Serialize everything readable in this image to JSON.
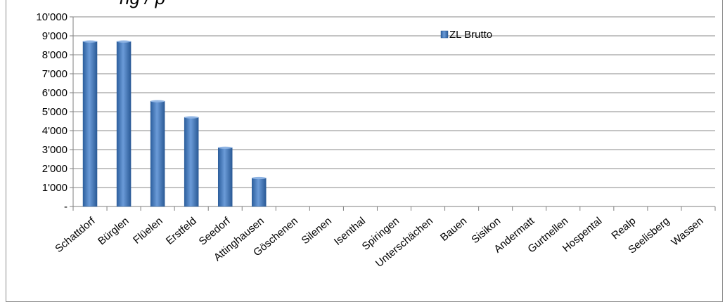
{
  "title_fragment": "ng / p",
  "chart_data": {
    "type": "bar",
    "categories": [
      "Schattdorf",
      "Bürglen",
      "Flüelen",
      "Erstfeld",
      "Seedorf",
      "Attinghausen",
      "Göschenen",
      "Silenen",
      "Isenthal",
      "Spiringen",
      "Unterschächen",
      "Bauen",
      "Sisikon",
      "Andermatt",
      "Gurtnellen",
      "Hospental",
      "Realp",
      "Seelisberg",
      "Wassen"
    ],
    "series": [
      {
        "name": "ZL Brutto",
        "values": [
          8700,
          8700,
          5550,
          4700,
          3100,
          1500,
          0,
          0,
          0,
          0,
          0,
          0,
          0,
          0,
          0,
          0,
          0,
          0,
          0
        ]
      }
    ],
    "ylim": [
      0,
      10000
    ],
    "yticks": [
      0,
      1000,
      2000,
      3000,
      4000,
      5000,
      6000,
      7000,
      8000,
      9000,
      10000
    ],
    "ytick_labels": [
      "-",
      "1'000",
      "2'000",
      "3'000",
      "4'000",
      "5'000",
      "6'000",
      "7'000",
      "8'000",
      "9'000",
      "10'000"
    ],
    "grid": true,
    "legend_position": "top-right",
    "bar_color": "#4f81bd"
  }
}
